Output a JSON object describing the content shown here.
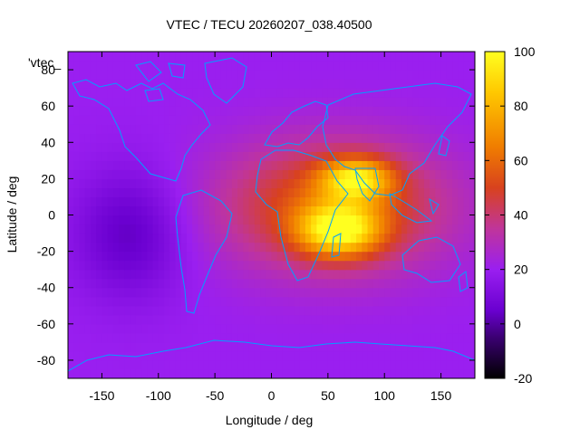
{
  "chart_data": {
    "type": "heatmap",
    "title": "VTEC / TECU 20260207_038.40500",
    "xlabel": "Longitude / deg",
    "ylabel": "Latitude / deg",
    "key_label": "'vtec_",
    "xlim": [
      -180,
      180
    ],
    "ylim": [
      -90,
      90
    ],
    "x_ticks": [
      -150,
      -100,
      -50,
      0,
      50,
      100,
      150
    ],
    "y_ticks": [
      -80,
      -60,
      -40,
      -20,
      0,
      20,
      40,
      60,
      80
    ],
    "colorbar": {
      "range": [
        -20,
        100
      ],
      "ticks": [
        -20,
        0,
        20,
        40,
        60,
        80,
        100
      ],
      "palette": [
        "#000000",
        "#3b0072",
        "#6a00d0",
        "#9a1ff0",
        "#c0359a",
        "#d8421e",
        "#f07d00",
        "#ffc800",
        "#ffff20"
      ],
      "palette_stops": [
        -20,
        -5,
        5,
        20,
        35,
        50,
        65,
        85,
        100
      ]
    },
    "field_model": {
      "background": 20,
      "features": [
        {
          "name": "afro-asian-peak",
          "lon": 60,
          "lat": -8,
          "sigma_lon": 25,
          "sigma_lat": 10,
          "amp": 60
        },
        {
          "name": "india-peak",
          "lon": 75,
          "lat": 20,
          "sigma_lon": 22,
          "sigma_lat": 8,
          "amp": 52
        },
        {
          "name": "main-anomaly",
          "lon": 55,
          "lat": 5,
          "sigma_lon": 70,
          "sigma_lat": 25,
          "amp": 38
        },
        {
          "name": "pacific-low",
          "lon": -125,
          "lat": -10,
          "sigma_lon": 35,
          "sigma_lat": 25,
          "amp": -17
        }
      ]
    },
    "coastline_color": "#00a0ff"
  }
}
